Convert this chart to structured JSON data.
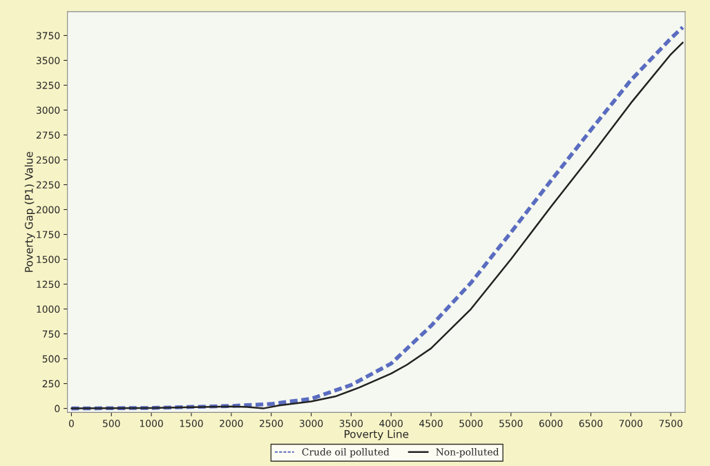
{
  "chart_data": {
    "type": "line",
    "xlabel": "Poverty Line",
    "ylabel": "Poverty Gap (P1) Value",
    "xlim": [
      -50,
      7680
    ],
    "ylim": [
      -40,
      3990
    ],
    "xticks": [
      0,
      500,
      1000,
      1500,
      2000,
      2500,
      3000,
      3500,
      4000,
      4500,
      5000,
      5500,
      6000,
      6500,
      7000,
      7500
    ],
    "yticks": [
      0,
      250,
      500,
      750,
      1000,
      1250,
      1500,
      1750,
      2000,
      2250,
      2500,
      2750,
      3000,
      3250,
      3500,
      3750
    ],
    "grid": false,
    "legend": "bottom",
    "marker": "none",
    "series": [
      {
        "name": "Crude oil polluted",
        "color": "#5a6cc0",
        "line_style": "dashed",
        "x": [
          0,
          1000,
          2000,
          2500,
          3000,
          3500,
          4000,
          4500,
          5000,
          5500,
          6000,
          6500,
          7000,
          7500,
          7650
        ],
        "values": [
          0,
          5,
          25,
          45,
          97,
          236,
          451,
          830,
          1264,
          1770,
          2290,
          2800,
          3300,
          3720,
          3833
        ]
      },
      {
        "name": "Non-polluted",
        "color": "#222222",
        "line_style": "solid",
        "x": [
          0,
          1000,
          2000,
          2200,
          2400,
          2600,
          3000,
          3300,
          3600,
          4000,
          4200,
          4500,
          5000,
          5500,
          6000,
          6500,
          7000,
          7500,
          7650
        ],
        "values": [
          0,
          5,
          20,
          15,
          0,
          30,
          70,
          120,
          210,
          350,
          440,
          604,
          1000,
          1500,
          2028,
          2540,
          3070,
          3560,
          3680
        ]
      }
    ]
  }
}
